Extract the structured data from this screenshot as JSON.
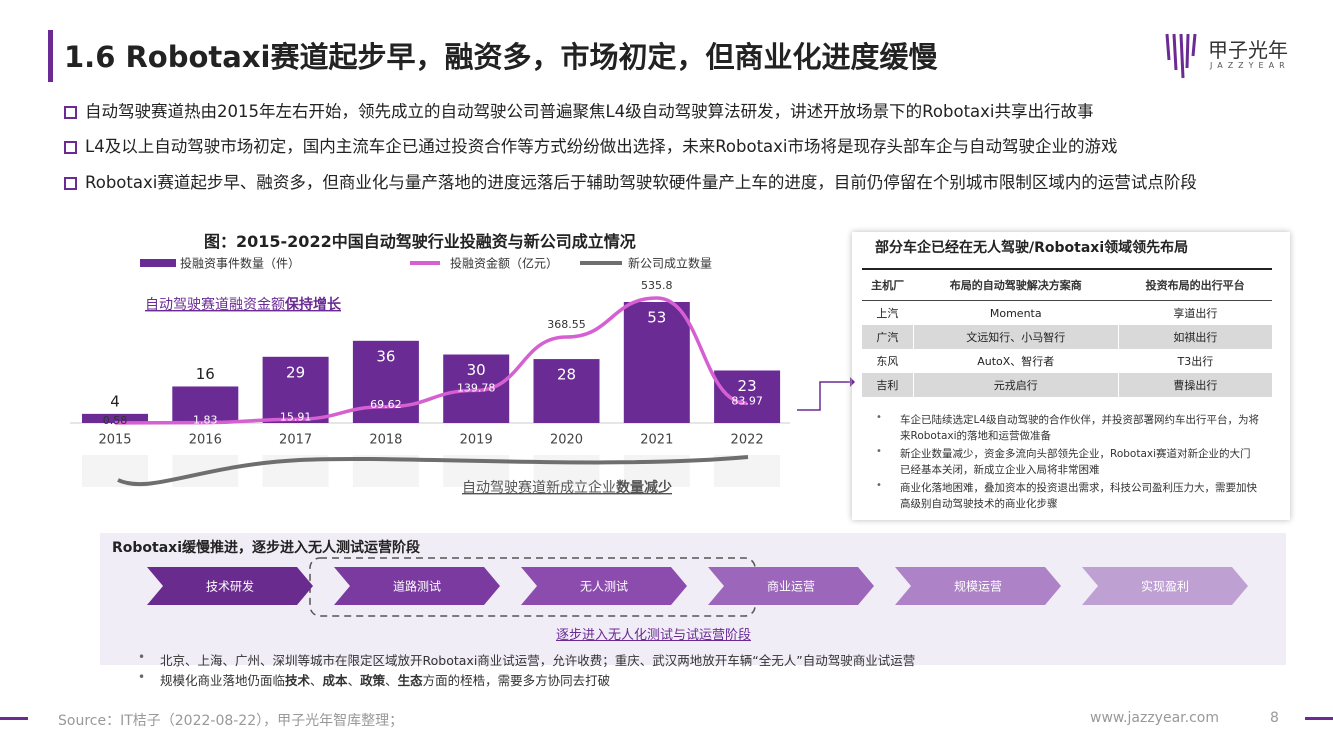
{
  "header": {
    "title": "1.6 Robotaxi赛道起步早，融资多，市场初定，但商业化进度缓慢",
    "logo": "甲子光年",
    "logo_sub": "JAZZYEAR"
  },
  "bullets": [
    "自动驾驶赛道热由2015年左右开始，领先成立的自动驾驶公司普遍聚焦L4级自动驾驶算法研发，讲述开放场景下的Robotaxi共享出行故事",
    "L4及以上自动驾驶市场初定，国内主流车企已通过投资合作等方式纷纷做出选择，未来Robotaxi市场将是现存头部车企与自动驾驶企业的游戏",
    "Robotaxi赛道起步早、融资多，但商业化与量产落地的进度远落后于辅助驾驶软硬件量产上车的进度，目前仍停留在个别城市限制区域内的运营试点阶段"
  ],
  "chart_data": {
    "type": "bar_line",
    "title": "图：2015-2022中国自动驾驶行业投融资与新公司成立情况",
    "categories": [
      "2015",
      "2016",
      "2017",
      "2018",
      "2019",
      "2020",
      "2021",
      "2022"
    ],
    "series": [
      {
        "name": "投融资事件数量（件）",
        "color": "#6a2b95",
        "values": [
          4,
          16,
          29,
          36,
          30,
          28,
          53,
          23
        ]
      },
      {
        "name": "投融资金额（亿元）",
        "color": "#d65fd2",
        "values": [
          0.58,
          1.83,
          15.91,
          69.62,
          139.78,
          368.55,
          535.8,
          83.97
        ]
      },
      {
        "name": "新公司成立数量",
        "color": "#6e6e6e"
      }
    ],
    "annotations": [
      {
        "parts": [
          {
            "text": "自动驾驶赛道融资金额",
            "bold": false
          },
          {
            "text": "保持增长",
            "bold": true
          }
        ]
      },
      {
        "parts": [
          {
            "text": "自动驾驶赛道新成立企业",
            "bold": false
          },
          {
            "text": "数量减少",
            "bold": true
          }
        ]
      }
    ]
  },
  "table": {
    "title": "部分车企已经在无人驾驶/Robotaxi领域领先布局",
    "header": [
      "主机厂",
      "布局的自动驾驶解决方案商",
      "投资布局的出行平台"
    ],
    "rows": [
      [
        "上汽",
        "Momenta",
        "享道出行"
      ],
      [
        "广汽",
        "文远知行、小马智行",
        "如祺出行"
      ],
      [
        "东风",
        "AutoX、智行者",
        "T3出行"
      ],
      [
        "吉利",
        "元戎启行",
        "曹操出行"
      ]
    ],
    "notes": [
      "车企已陆续选定L4级自动驾驶的合作伙伴，并投资部署网约车出行平台，为将来Robotaxi的落地和运营做准备",
      "新企业数量减少，资金多流向头部领先企业，Robotaxi赛道对新企业的大门已经基本关闭，新成立企业入局将非常困难",
      "商业化落地困难，叠加资本的投资退出需求，科技公司盈利压力大，需要加快高级别自动驾驶技术的商业化步骤"
    ]
  },
  "process": {
    "title": "Robotaxi缓慢推进，逐步进入无人测试运营阶段",
    "steps": [
      "技术研发",
      "道路测试",
      "无人测试",
      "商业运营",
      "规模运营",
      "实现盈利"
    ],
    "caption": "逐步进入无人化测试与试运营阶段",
    "notes": [
      {
        "parts": [
          {
            "text": "北京、上海、广州、深圳等城市在限定区域放开Robotaxi商业试运营，允许收费；重庆、武汉两地放开车辆“全无人”自动驾驶商业试运营",
            "bold": false
          }
        ]
      },
      {
        "parts": [
          {
            "text": "规模化商业落地仍面临",
            "bold": false
          },
          {
            "text": "技术",
            "bold": true
          },
          {
            "text": "、",
            "bold": false
          },
          {
            "text": "成本",
            "bold": true
          },
          {
            "text": "、",
            "bold": false
          },
          {
            "text": "政策",
            "bold": true
          },
          {
            "text": "、",
            "bold": false
          },
          {
            "text": "生态",
            "bold": true
          },
          {
            "text": "方面的桎梏，需要多方协同去打破",
            "bold": false
          }
        ]
      }
    ]
  },
  "footer": {
    "source": "Source：IT桔子（2022-08-22），甲子光年智库整理；",
    "url": "www.jazzyear.com",
    "page": "8"
  }
}
